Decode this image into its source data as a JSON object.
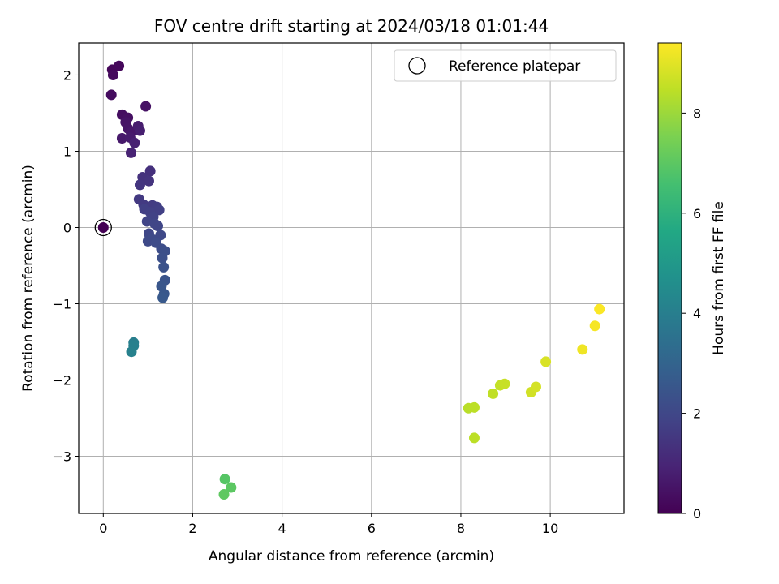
{
  "chart_data": {
    "type": "scatter",
    "title": "FOV centre drift starting at 2024/03/18 01:01:44",
    "xlabel": "Angular distance from reference (arcmin)",
    "ylabel": "Rotation from reference (arcmin)",
    "xlim": [
      -0.55,
      11.65
    ],
    "ylim": [
      -3.75,
      2.42
    ],
    "xticks": [
      0,
      2,
      4,
      6,
      8,
      10
    ],
    "yticks": [
      -3,
      -2,
      -1,
      0,
      1,
      2
    ],
    "xtick_labels": [
      "0",
      "2",
      "4",
      "6",
      "8",
      "10"
    ],
    "ytick_labels": [
      "−3",
      "−2",
      "−1",
      "0",
      "1",
      "2"
    ],
    "grid": true,
    "legend": {
      "position": "top-right",
      "label": "Reference platepar"
    },
    "reference_point": {
      "x": 0,
      "y": 0
    },
    "colorbar": {
      "label": "Hours from first FF file",
      "range": [
        0,
        9.4
      ],
      "ticks": [
        0,
        2,
        4,
        6,
        8
      ],
      "tick_labels": [
        "0",
        "2",
        "4",
        "6",
        "8"
      ],
      "colormap": "viridis"
    },
    "points": [
      {
        "x": 0.0,
        "y": 0.0,
        "hours": 0.0
      },
      {
        "x": 0.2,
        "y": 2.07,
        "hours": 0.15
      },
      {
        "x": 0.35,
        "y": 2.12,
        "hours": 0.2
      },
      {
        "x": 0.22,
        "y": 2.0,
        "hours": 0.25
      },
      {
        "x": 0.18,
        "y": 1.74,
        "hours": 0.3
      },
      {
        "x": 0.42,
        "y": 1.48,
        "hours": 0.35
      },
      {
        "x": 0.55,
        "y": 1.44,
        "hours": 0.4
      },
      {
        "x": 0.95,
        "y": 1.59,
        "hours": 0.45
      },
      {
        "x": 0.5,
        "y": 1.38,
        "hours": 0.5
      },
      {
        "x": 0.55,
        "y": 1.3,
        "hours": 0.55
      },
      {
        "x": 0.62,
        "y": 1.25,
        "hours": 0.6
      },
      {
        "x": 0.42,
        "y": 1.17,
        "hours": 0.65
      },
      {
        "x": 0.6,
        "y": 1.18,
        "hours": 0.7
      },
      {
        "x": 0.78,
        "y": 1.33,
        "hours": 0.75
      },
      {
        "x": 0.82,
        "y": 1.27,
        "hours": 0.8
      },
      {
        "x": 0.7,
        "y": 1.11,
        "hours": 0.85
      },
      {
        "x": 0.62,
        "y": 0.98,
        "hours": 0.9
      },
      {
        "x": 1.05,
        "y": 0.74,
        "hours": 1.3
      },
      {
        "x": 0.88,
        "y": 0.66,
        "hours": 1.35
      },
      {
        "x": 1.02,
        "y": 0.61,
        "hours": 1.4
      },
      {
        "x": 0.82,
        "y": 0.56,
        "hours": 1.45
      },
      {
        "x": 0.8,
        "y": 0.37,
        "hours": 1.55
      },
      {
        "x": 0.9,
        "y": 0.3,
        "hours": 1.6
      },
      {
        "x": 1.1,
        "y": 0.29,
        "hours": 1.65
      },
      {
        "x": 1.2,
        "y": 0.27,
        "hours": 1.7
      },
      {
        "x": 1.25,
        "y": 0.23,
        "hours": 1.75
      },
      {
        "x": 0.92,
        "y": 0.24,
        "hours": 1.75
      },
      {
        "x": 1.05,
        "y": 0.2,
        "hours": 1.8
      },
      {
        "x": 1.12,
        "y": 0.14,
        "hours": 1.85
      },
      {
        "x": 0.98,
        "y": 0.08,
        "hours": 1.9
      },
      {
        "x": 1.15,
        "y": 0.05,
        "hours": 1.95
      },
      {
        "x": 1.22,
        "y": 0.02,
        "hours": 1.95
      },
      {
        "x": 1.02,
        "y": -0.08,
        "hours": 2.0
      },
      {
        "x": 1.28,
        "y": -0.1,
        "hours": 2.05
      },
      {
        "x": 1.0,
        "y": -0.18,
        "hours": 2.1
      },
      {
        "x": 1.08,
        "y": -0.15,
        "hours": 2.1
      },
      {
        "x": 1.18,
        "y": -0.2,
        "hours": 2.15
      },
      {
        "x": 1.3,
        "y": -0.28,
        "hours": 2.2
      },
      {
        "x": 1.38,
        "y": -0.31,
        "hours": 2.25
      },
      {
        "x": 1.32,
        "y": -0.4,
        "hours": 2.3
      },
      {
        "x": 1.35,
        "y": -0.52,
        "hours": 2.35
      },
      {
        "x": 1.38,
        "y": -0.69,
        "hours": 2.45
      },
      {
        "x": 1.3,
        "y": -0.77,
        "hours": 2.5
      },
      {
        "x": 1.36,
        "y": -0.87,
        "hours": 2.55
      },
      {
        "x": 1.33,
        "y": -0.92,
        "hours": 2.6
      },
      {
        "x": 0.68,
        "y": -1.51,
        "hours": 4.0
      },
      {
        "x": 0.68,
        "y": -1.55,
        "hours": 4.05
      },
      {
        "x": 0.63,
        "y": -1.63,
        "hours": 4.1
      },
      {
        "x": 2.72,
        "y": -3.3,
        "hours": 6.9
      },
      {
        "x": 2.86,
        "y": -3.41,
        "hours": 7.0
      },
      {
        "x": 2.7,
        "y": -3.5,
        "hours": 7.05
      },
      {
        "x": 8.17,
        "y": -2.37,
        "hours": 8.4
      },
      {
        "x": 8.3,
        "y": -2.36,
        "hours": 8.45
      },
      {
        "x": 8.3,
        "y": -2.76,
        "hours": 8.45
      },
      {
        "x": 8.72,
        "y": -2.18,
        "hours": 8.5
      },
      {
        "x": 8.88,
        "y": -2.07,
        "hours": 8.55
      },
      {
        "x": 8.98,
        "y": -2.05,
        "hours": 8.6
      },
      {
        "x": 9.57,
        "y": -2.16,
        "hours": 8.75
      },
      {
        "x": 9.68,
        "y": -2.09,
        "hours": 8.8
      },
      {
        "x": 9.9,
        "y": -1.76,
        "hours": 8.85
      },
      {
        "x": 10.72,
        "y": -1.6,
        "hours": 9.2
      },
      {
        "x": 11.0,
        "y": -1.29,
        "hours": 9.3
      },
      {
        "x": 11.1,
        "y": -1.07,
        "hours": 9.35
      }
    ]
  }
}
